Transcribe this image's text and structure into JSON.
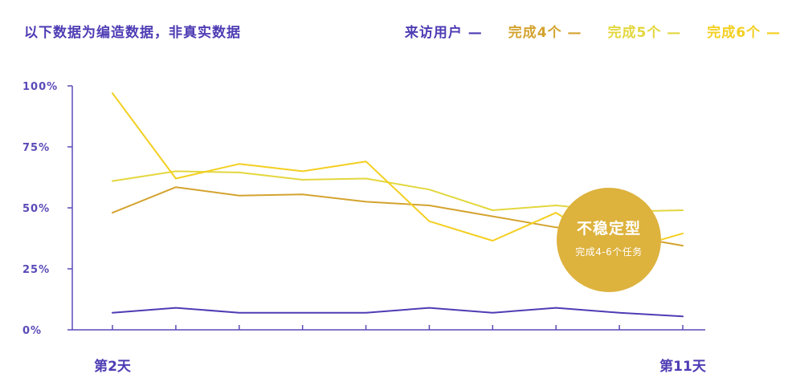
{
  "header": {
    "title": "以下数据为编造数据，非真实数据"
  },
  "legend": [
    {
      "label": "来访用户 —",
      "color": "#4e3cb4"
    },
    {
      "label": "完成4个 —",
      "color": "#d4a32f"
    },
    {
      "label": "完成5个 —",
      "color": "#e3d73e"
    },
    {
      "label": "完成6个 —",
      "color": "#f3cf20"
    }
  ],
  "badge": {
    "title": "不稳定型",
    "subtitle": "完成4-6个任务",
    "color": "#ddb23d"
  },
  "chart_data": {
    "type": "line",
    "title": "",
    "xlabel": "",
    "ylabel": "",
    "ylim": [
      0,
      100
    ],
    "y_ticks": [
      0,
      25,
      50,
      75,
      100
    ],
    "y_tick_labels": [
      "0%",
      "25%",
      "50%",
      "75%",
      "100%"
    ],
    "x_tick_labels": [
      "第2天",
      "第11天"
    ],
    "x": [
      2,
      3,
      4,
      5,
      6,
      7,
      8,
      9,
      10,
      11
    ],
    "grid": false,
    "legend_position": "top-right",
    "series": [
      {
        "name": "来访用户",
        "color": "#4e3cb4",
        "values": [
          7,
          9,
          7,
          7,
          7,
          9,
          7,
          9,
          7,
          5.5
        ]
      },
      {
        "name": "完成4个",
        "color": "#d4a32f",
        "values": [
          48,
          58.5,
          55,
          55.5,
          52.5,
          51,
          46.5,
          42,
          39,
          34.5
        ]
      },
      {
        "name": "完成5个",
        "color": "#e3d73e",
        "values": [
          61,
          65,
          64.5,
          61.5,
          62,
          57.5,
          49,
          51,
          48.5,
          49
        ]
      },
      {
        "name": "完成6个",
        "color": "#f3cf20",
        "values": [
          97,
          62,
          68,
          65,
          69,
          44.5,
          36.5,
          48,
          32,
          39.5
        ]
      }
    ]
  }
}
